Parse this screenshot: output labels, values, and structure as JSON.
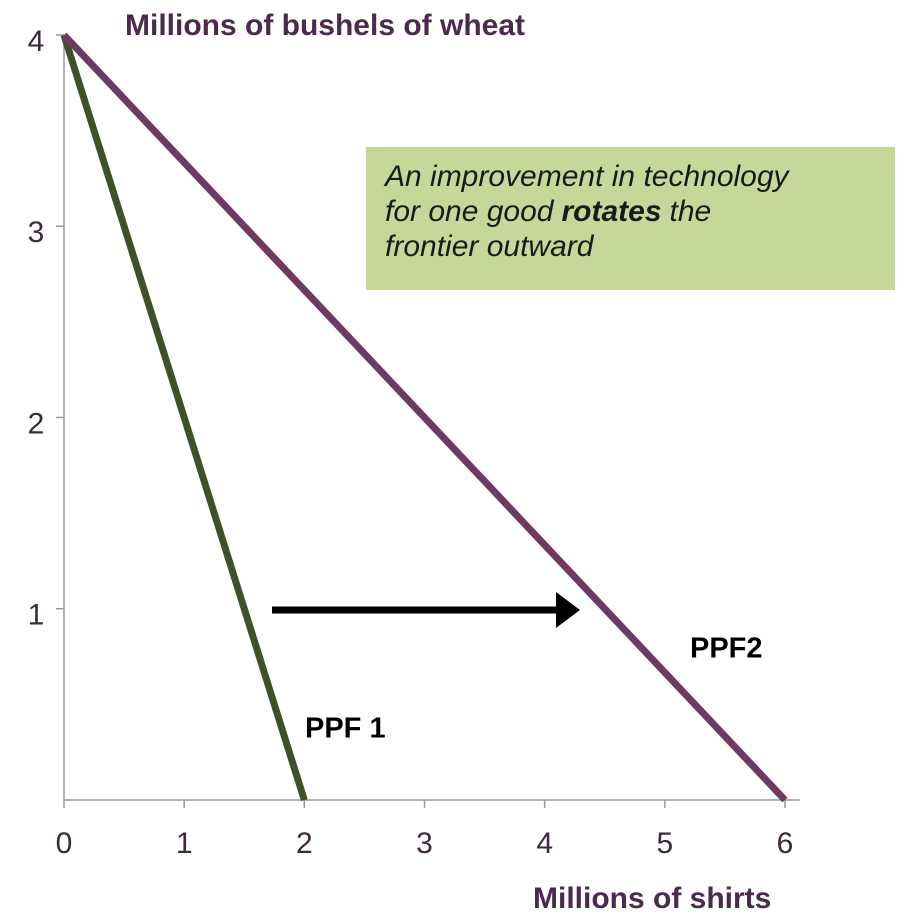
{
  "chart_data": {
    "type": "line",
    "title": "Millions of bushels of wheat",
    "x_label": "Millions of shirts",
    "xlim": [
      0,
      6
    ],
    "ylim": [
      0,
      4
    ],
    "xticks": [
      0,
      1,
      2,
      3,
      4,
      5,
      6
    ],
    "yticks": [
      1,
      2,
      3,
      4
    ],
    "grid": false,
    "series": [
      {
        "name": "PPF 1",
        "color": "#3d5229",
        "x": [
          0,
          2
        ],
        "values": [
          4,
          0
        ]
      },
      {
        "name": "PPF2",
        "color": "#6e3a62",
        "x": [
          0,
          6
        ],
        "values": [
          4,
          0
        ]
      }
    ],
    "annotation": {
      "lines": [
        [
          {
            "text": "An improvement in technology",
            "bold": false
          }
        ],
        [
          {
            "text": "for one good",
            "bold": false
          },
          {
            "text": "rotates",
            "bold": true
          },
          {
            "text": "the",
            "bold": false
          }
        ],
        [
          {
            "text": "frontier outward",
            "bold": false
          }
        ]
      ],
      "background": "#c5d89a"
    }
  }
}
